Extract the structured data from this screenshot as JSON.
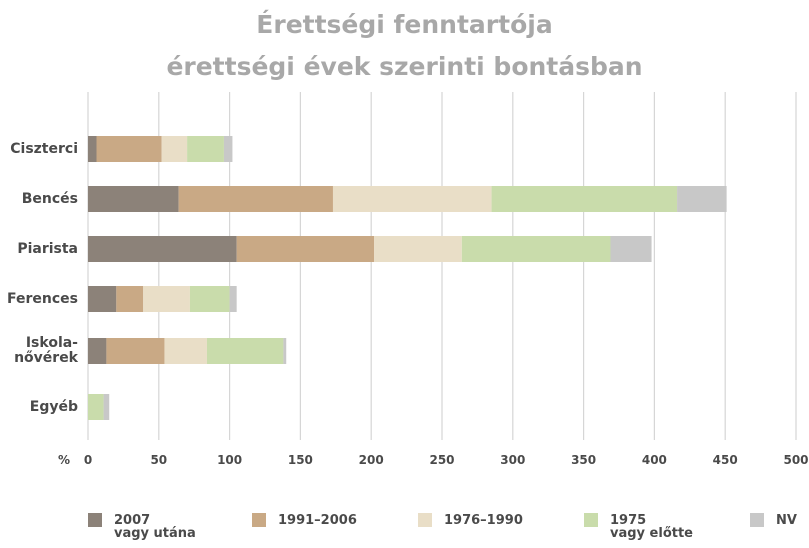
{
  "chart_data": {
    "type": "stacked-barh",
    "title": "Érettségi fenntartója\nérettségi évek szerinti bontásban",
    "axis_unit": "%",
    "categories": [
      "Ciszterci",
      "Bencés",
      "Piarista",
      "Ferences",
      "Iskola-\nnővérek",
      "Egyéb"
    ],
    "series": [
      {
        "name": "2007\nvagy utána",
        "color": "#8c8279",
        "values": [
          6,
          64,
          105,
          20,
          13,
          0
        ]
      },
      {
        "name": "1991–2006",
        "color": "#c9a985",
        "values": [
          46,
          109,
          97,
          19,
          41,
          0
        ]
      },
      {
        "name": "1976–1990",
        "color": "#e9dec7",
        "values": [
          18,
          112,
          62,
          33,
          30,
          0
        ]
      },
      {
        "name": "1975\nvagy előtte",
        "color": "#c9dcab",
        "values": [
          26,
          131,
          105,
          28,
          54,
          11
        ]
      },
      {
        "name": "NV",
        "color": "#c8c8c8",
        "values": [
          6,
          35,
          29,
          5,
          2,
          4
        ]
      }
    ],
    "xlim": [
      0,
      500
    ],
    "xticks": [
      0,
      50,
      100,
      150,
      200,
      250,
      300,
      350,
      400,
      450,
      500
    ],
    "grid": true
  }
}
